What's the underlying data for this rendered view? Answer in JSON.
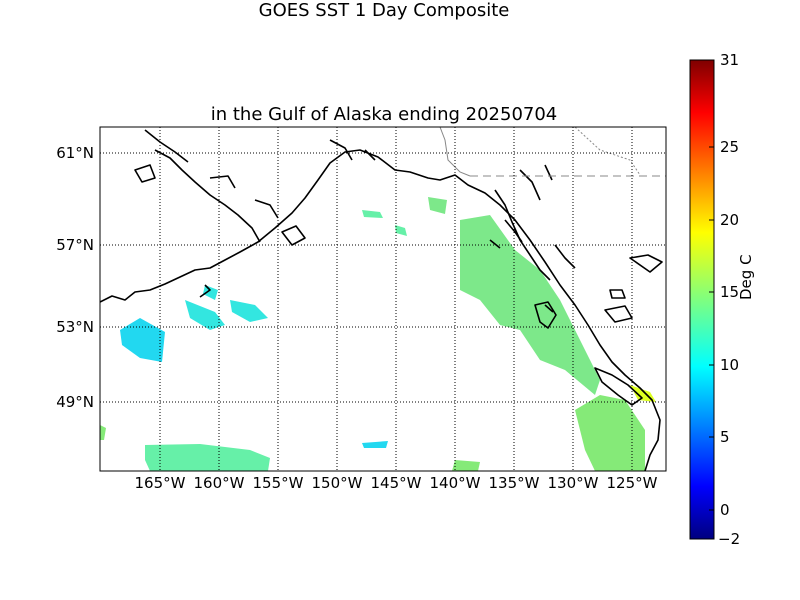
{
  "title": {
    "line1": "GOES SST 1 Day Composite",
    "line2": "in the Gulf of Alaska ending 20250704"
  },
  "map": {
    "latitude_labels": [
      "61°N",
      "57°N",
      "53°N",
      "49°N"
    ],
    "longitude_labels": [
      "165°W",
      "160°W",
      "155°W",
      "150°W",
      "145°W",
      "140°W",
      "135°W",
      "130°W",
      "125°W"
    ],
    "grid": "dotted",
    "land_color": "#ffffff",
    "coast_color": "#000000"
  },
  "colorbar": {
    "unit": "Deg C",
    "tick_labels": [
      "31",
      "25",
      "20",
      "15",
      "10",
      "5",
      "0",
      "−2"
    ],
    "range": [
      -2,
      31
    ],
    "colormap": "jet",
    "colors": [
      "#00007f",
      "#0000ff",
      "#007fff",
      "#00ffff",
      "#7fff7f",
      "#ffff00",
      "#ff7f00",
      "#ff0000",
      "#7f0000"
    ]
  }
}
